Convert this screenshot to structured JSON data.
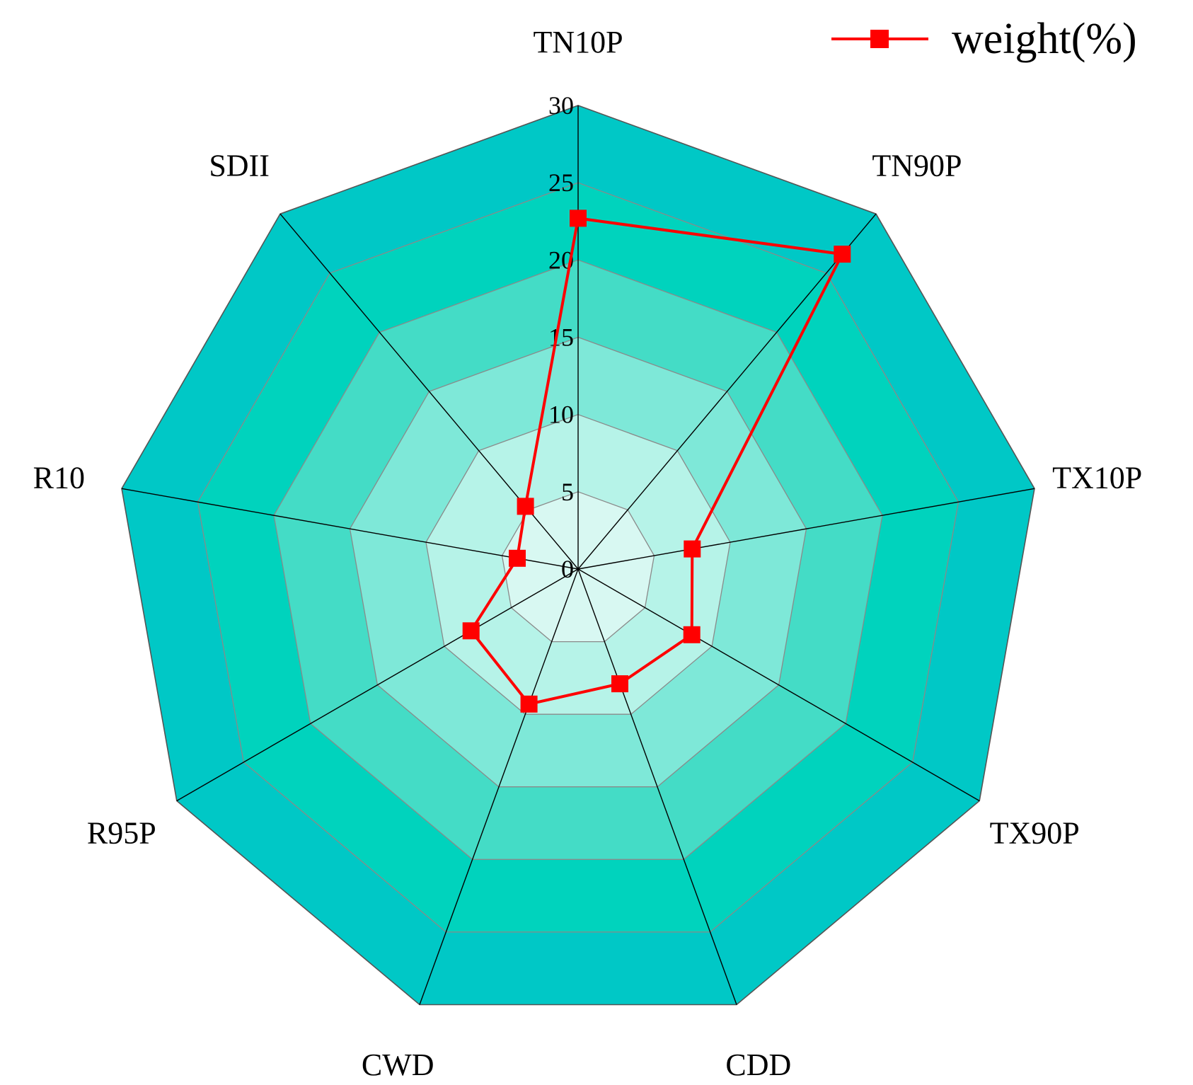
{
  "chart_data": {
    "type": "radar",
    "categories": [
      "TN10P",
      "TN90P",
      "TX10P",
      "TX90P",
      "CDD",
      "CWD",
      "R95P",
      "R10",
      "SDII"
    ],
    "series": [
      {
        "name": "weight(%)",
        "values": [
          22.7,
          26.6,
          7.5,
          8.5,
          7.9,
          9.3,
          8.0,
          4.0,
          5.3
        ]
      }
    ],
    "r_ticks": [
      "0",
      "5",
      "10",
      "15",
      "20",
      "25",
      "30"
    ],
    "r_range": [
      0,
      30
    ],
    "legend_position": "top-right",
    "colors": {
      "series_line": "#ff0000",
      "marker": "#ff0000",
      "axis_line": "#000000",
      "ring_line": "#8a8a8a",
      "outer_border": "#555555",
      "bands": [
        "#d8f8f2",
        "#b6f3e8",
        "#7ee8d8",
        "#44dcc6",
        "#00d3bd",
        "#00c8c6"
      ]
    }
  }
}
